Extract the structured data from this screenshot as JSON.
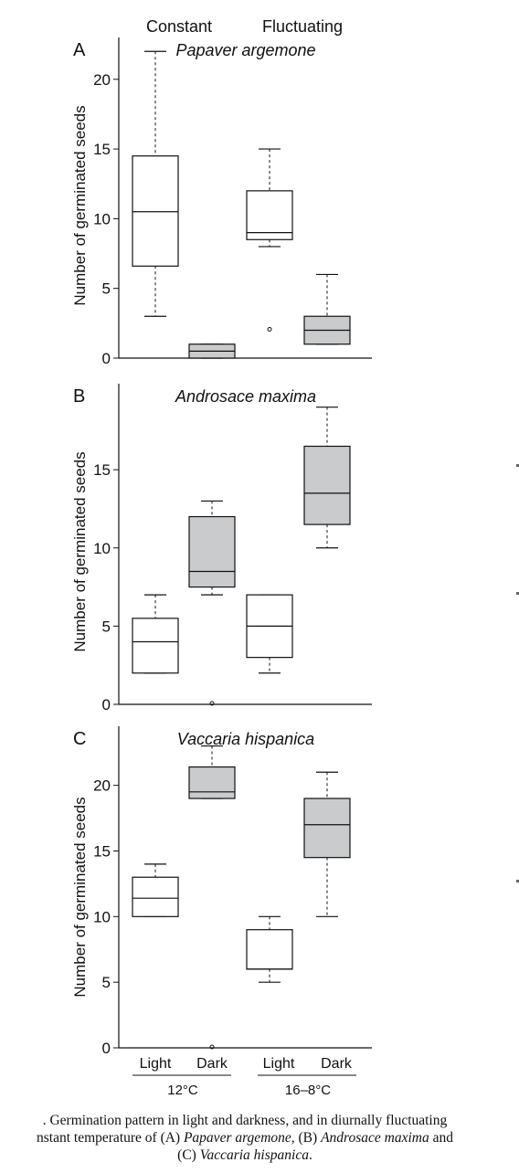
{
  "figure": {
    "header_left": "Constant",
    "header_right": "Fluctuating",
    "x_groups": [
      "Light",
      "Dark",
      "Light",
      "Dark"
    ],
    "temp_labels": [
      "12°C",
      "16–8°C"
    ]
  },
  "caption": {
    "part1": ". Germination pattern in light and darkness, and in diurnally fluctuating",
    "part2a": "nstant temperature of (A) ",
    "sp_a": "Papaver argemone",
    "part2b": ", (B) ",
    "sp_b": "Androsace maxima",
    "part2c": " and",
    "part3a": "(C) ",
    "sp_c": "Vaccaria hispanica",
    "part3b": "."
  },
  "chart_data": [
    {
      "type": "boxplot",
      "panel": "A",
      "title": "Papaver argemone",
      "ylabel": "Number of germinated seeds",
      "ylim": [
        0,
        23
      ],
      "yticks": [
        0,
        5,
        10,
        15,
        20
      ],
      "categories": [
        "Constant Light",
        "Constant Dark",
        "Fluctuating Light",
        "Fluctuating Dark"
      ],
      "boxes": [
        {
          "whisker_low": 3,
          "q1": 6.6,
          "median": 10.5,
          "q3": 14.5,
          "whisker_high": 22,
          "fill": "#ffffff",
          "outliers": []
        },
        {
          "whisker_low": 0,
          "q1": 0,
          "median": 0.5,
          "q3": 1,
          "whisker_high": 1,
          "fill": "#c9cbcc",
          "outliers": []
        },
        {
          "whisker_low": 8,
          "q1": 8.5,
          "median": 9,
          "q3": 12,
          "whisker_high": 15,
          "fill": "#ffffff",
          "outliers": [
            2
          ]
        },
        {
          "whisker_low": 1,
          "q1": 1,
          "median": 2,
          "q3": 3,
          "whisker_high": 6,
          "fill": "#c9cbcc",
          "outliers": []
        }
      ]
    },
    {
      "type": "boxplot",
      "panel": "B",
      "title": "Androsace maxima",
      "ylabel": "Number of germinated seeds",
      "ylim": [
        0,
        20.5
      ],
      "yticks": [
        0,
        5,
        10,
        15
      ],
      "categories": [
        "Constant Light",
        "Constant Dark",
        "Fluctuating Light",
        "Fluctuating Dark"
      ],
      "boxes": [
        {
          "whisker_low": 2,
          "q1": 2,
          "median": 4,
          "q3": 5.5,
          "whisker_high": 7,
          "fill": "#ffffff",
          "outliers": []
        },
        {
          "whisker_low": 7,
          "q1": 7.5,
          "median": 8.5,
          "q3": 12,
          "whisker_high": 13,
          "fill": "#c9cbcc",
          "outliers": [
            0
          ]
        },
        {
          "whisker_low": 2,
          "q1": 3,
          "median": 5,
          "q3": 7,
          "whisker_high": 7,
          "fill": "#ffffff",
          "outliers": []
        },
        {
          "whisker_low": 10,
          "q1": 11.5,
          "median": 13.5,
          "q3": 16.5,
          "whisker_high": 19,
          "fill": "#c9cbcc",
          "outliers": []
        }
      ]
    },
    {
      "type": "boxplot",
      "panel": "C",
      "title": "Vaccaria hispanica",
      "ylabel": "Number of germinated seeds",
      "ylim": [
        0,
        24.5
      ],
      "yticks": [
        0,
        5,
        10,
        15,
        20
      ],
      "categories": [
        "Constant Light",
        "Constant Dark",
        "Fluctuating Light",
        "Fluctuating Dark"
      ],
      "boxes": [
        {
          "whisker_low": 10,
          "q1": 10,
          "median": 11.4,
          "q3": 13,
          "whisker_high": 14,
          "fill": "#ffffff",
          "outliers": []
        },
        {
          "whisker_low": 19,
          "q1": 19,
          "median": 19.5,
          "q3": 21.4,
          "whisker_high": 23,
          "fill": "#c9cbcc",
          "outliers": [
            0
          ]
        },
        {
          "whisker_low": 5,
          "q1": 6,
          "median": 6,
          "q3": 9,
          "whisker_high": 10,
          "fill": "#ffffff",
          "outliers": []
        },
        {
          "whisker_low": 10,
          "q1": 14.5,
          "median": 17,
          "q3": 19,
          "whisker_high": 21,
          "fill": "#c9cbcc",
          "outliers": []
        }
      ]
    }
  ]
}
